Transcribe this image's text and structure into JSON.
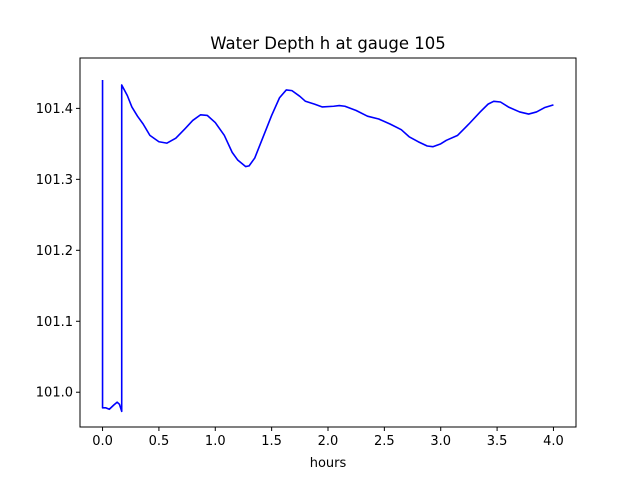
{
  "chart_data": {
    "type": "line",
    "title": "Water Depth h at gauge 105",
    "xlabel": "hours",
    "ylabel": "",
    "xlim": [
      -0.2,
      4.2
    ],
    "ylim": [
      100.951,
      101.471
    ],
    "grid": false,
    "legend": "none",
    "x_ticks": [
      {
        "value": 0.0,
        "label": "0.0"
      },
      {
        "value": 0.5,
        "label": "0.5"
      },
      {
        "value": 1.0,
        "label": "1.0"
      },
      {
        "value": 1.5,
        "label": "1.5"
      },
      {
        "value": 2.0,
        "label": "2.0"
      },
      {
        "value": 2.5,
        "label": "2.5"
      },
      {
        "value": 3.0,
        "label": "3.0"
      },
      {
        "value": 3.5,
        "label": "3.5"
      },
      {
        "value": 4.0,
        "label": "4.0"
      }
    ],
    "y_ticks": [
      {
        "value": 101.0,
        "label": "101.0"
      },
      {
        "value": 101.1,
        "label": "101.1"
      },
      {
        "value": 101.2,
        "label": "101.2"
      },
      {
        "value": 101.3,
        "label": "101.3"
      },
      {
        "value": 101.4,
        "label": "101.4"
      }
    ],
    "series": [
      {
        "color": "#0000ff",
        "points": [
          [
            0.0,
            101.44
          ],
          [
            0.0,
            100.978
          ],
          [
            0.03,
            100.978
          ],
          [
            0.06,
            100.976
          ],
          [
            0.1,
            100.982
          ],
          [
            0.13,
            100.986
          ],
          [
            0.15,
            100.983
          ],
          [
            0.17,
            100.973
          ],
          [
            0.17,
            101.433
          ],
          [
            0.22,
            101.418
          ],
          [
            0.26,
            101.402
          ],
          [
            0.31,
            101.389
          ],
          [
            0.36,
            101.378
          ],
          [
            0.42,
            101.362
          ],
          [
            0.5,
            101.353
          ],
          [
            0.57,
            101.351
          ],
          [
            0.65,
            101.358
          ],
          [
            0.73,
            101.371
          ],
          [
            0.8,
            101.383
          ],
          [
            0.87,
            101.391
          ],
          [
            0.93,
            101.39
          ],
          [
            1.0,
            101.38
          ],
          [
            1.08,
            101.362
          ],
          [
            1.15,
            101.338
          ],
          [
            1.2,
            101.327
          ],
          [
            1.27,
            101.318
          ],
          [
            1.3,
            101.319
          ],
          [
            1.35,
            101.33
          ],
          [
            1.42,
            101.358
          ],
          [
            1.5,
            101.39
          ],
          [
            1.57,
            101.415
          ],
          [
            1.63,
            101.426
          ],
          [
            1.68,
            101.425
          ],
          [
            1.75,
            101.417
          ],
          [
            1.8,
            101.41
          ],
          [
            1.88,
            101.406
          ],
          [
            1.95,
            101.402
          ],
          [
            2.05,
            101.403
          ],
          [
            2.1,
            101.404
          ],
          [
            2.15,
            101.403
          ],
          [
            2.25,
            101.397
          ],
          [
            2.35,
            101.389
          ],
          [
            2.45,
            101.385
          ],
          [
            2.55,
            101.378
          ],
          [
            2.65,
            101.37
          ],
          [
            2.72,
            101.36
          ],
          [
            2.8,
            101.353
          ],
          [
            2.88,
            101.347
          ],
          [
            2.93,
            101.346
          ],
          [
            3.0,
            101.35
          ],
          [
            3.05,
            101.355
          ],
          [
            3.15,
            101.362
          ],
          [
            3.25,
            101.378
          ],
          [
            3.35,
            101.395
          ],
          [
            3.42,
            101.406
          ],
          [
            3.47,
            101.41
          ],
          [
            3.53,
            101.409
          ],
          [
            3.6,
            101.402
          ],
          [
            3.7,
            101.395
          ],
          [
            3.78,
            101.392
          ],
          [
            3.85,
            101.395
          ],
          [
            3.92,
            101.401
          ],
          [
            4.0,
            101.405
          ]
        ]
      }
    ]
  }
}
